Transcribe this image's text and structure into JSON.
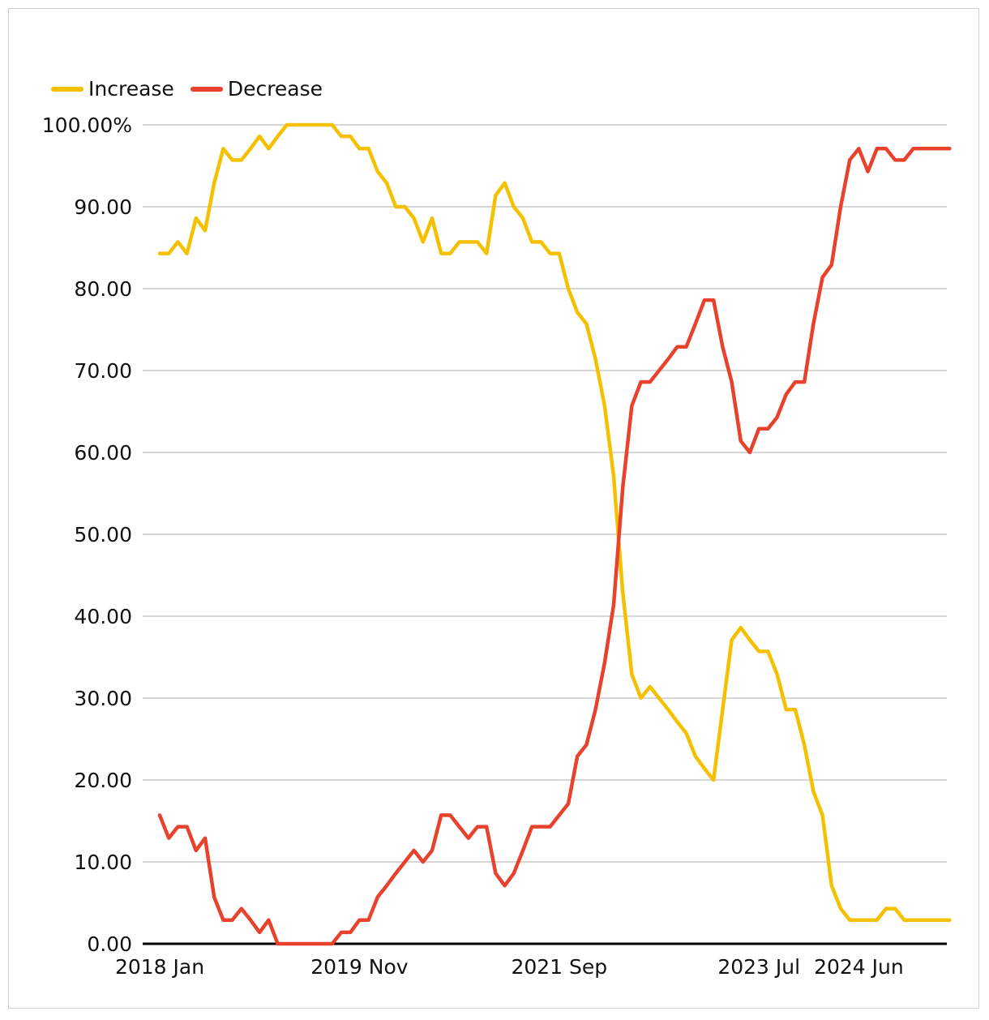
{
  "chart_data": {
    "type": "line",
    "legend_position": "top-left",
    "grid": true,
    "ylim": [
      0,
      100
    ],
    "y_ticks": [
      "0.00",
      "10.00",
      "20.00",
      "30.00",
      "40.00",
      "50.00",
      "60.00",
      "70.00",
      "80.00",
      "90.00",
      "100.00%"
    ],
    "x_ticks": [
      "2018 Jan",
      "2019 Nov",
      "2021 Sep",
      "2023 Jul",
      "2024 Jun"
    ],
    "x": [
      "2018-01",
      "2018-02",
      "2018-03",
      "2018-04",
      "2018-05",
      "2018-06",
      "2018-07",
      "2018-08",
      "2018-09",
      "2018-10",
      "2018-11",
      "2018-12",
      "2019-01",
      "2019-02",
      "2019-03",
      "2019-04",
      "2019-05",
      "2019-06",
      "2019-07",
      "2019-08",
      "2019-09",
      "2019-10",
      "2019-11",
      "2019-12",
      "2020-01",
      "2020-02",
      "2020-03",
      "2020-04",
      "2020-05",
      "2020-06",
      "2020-07",
      "2020-08",
      "2020-09",
      "2020-10",
      "2020-11",
      "2020-12",
      "2021-01",
      "2021-02",
      "2021-03",
      "2021-04",
      "2021-05",
      "2021-06",
      "2021-07",
      "2021-08",
      "2021-09",
      "2021-10",
      "2021-11",
      "2021-12",
      "2022-01",
      "2022-02",
      "2022-03",
      "2022-04",
      "2022-05",
      "2022-06",
      "2022-07",
      "2022-08",
      "2022-09",
      "2022-10",
      "2022-11",
      "2022-12",
      "2023-01",
      "2023-02",
      "2023-03",
      "2023-04",
      "2023-05",
      "2023-06",
      "2023-07",
      "2023-08",
      "2023-09",
      "2023-10",
      "2023-11",
      "2023-12",
      "2024-01",
      "2024-02",
      "2024-03",
      "2024-04",
      "2024-05",
      "2024-06",
      "2024-07",
      "2024-08",
      "2024-09",
      "2024-10",
      "2024-11",
      "2024-12",
      "2025-01",
      "2025-02",
      "2025-03",
      "2025-04"
    ],
    "series": [
      {
        "name": "Increase",
        "color": "#F5C000",
        "values": [
          84.3,
          84.3,
          85.7,
          84.3,
          88.6,
          87.1,
          92.9,
          97.1,
          95.7,
          95.7,
          97.1,
          98.6,
          97.1,
          98.6,
          100,
          100,
          100,
          100,
          100,
          100,
          98.6,
          98.6,
          97.1,
          97.1,
          94.3,
          92.9,
          90.0,
          90.0,
          88.6,
          85.7,
          88.6,
          84.3,
          84.3,
          85.7,
          85.7,
          85.7,
          84.3,
          91.4,
          92.9,
          90.0,
          88.6,
          85.7,
          85.7,
          84.3,
          84.3,
          80.0,
          77.1,
          75.7,
          71.4,
          65.7,
          57.1,
          42.9,
          32.9,
          30.0,
          31.4,
          30.0,
          28.6,
          27.1,
          25.7,
          22.9,
          21.4,
          20.0,
          28.6,
          37.1,
          38.6,
          37.1,
          35.7,
          35.7,
          32.9,
          28.6,
          28.6,
          24.3,
          18.6,
          15.7,
          7.1,
          4.3,
          2.9,
          2.9,
          2.9,
          2.9,
          4.3,
          4.3,
          2.9,
          2.9,
          2.9,
          2.9,
          2.9,
          2.9
        ]
      },
      {
        "name": "Decrease",
        "color": "#E8412C",
        "values": [
          15.7,
          12.9,
          14.3,
          14.3,
          11.4,
          12.9,
          5.7,
          2.9,
          2.9,
          4.3,
          2.9,
          1.4,
          2.9,
          0,
          0,
          0,
          0,
          0,
          0,
          0,
          1.4,
          1.4,
          2.9,
          2.9,
          5.7,
          7.1,
          8.6,
          10.0,
          11.4,
          10.0,
          11.4,
          15.7,
          15.7,
          14.3,
          12.9,
          14.3,
          14.3,
          8.6,
          7.1,
          8.6,
          11.4,
          14.3,
          14.3,
          14.3,
          15.7,
          17.1,
          22.9,
          24.3,
          28.6,
          34.3,
          41.4,
          55.7,
          65.7,
          68.6,
          68.6,
          70.0,
          71.4,
          72.9,
          72.9,
          75.7,
          78.6,
          78.6,
          72.9,
          68.6,
          61.4,
          60.0,
          62.9,
          62.9,
          64.3,
          67.1,
          68.6,
          68.6,
          75.7,
          81.4,
          82.9,
          90.0,
          95.7,
          97.1,
          94.3,
          97.1,
          97.1,
          95.7,
          95.7,
          97.1,
          97.1,
          97.1,
          97.1,
          97.1
        ]
      }
    ]
  }
}
